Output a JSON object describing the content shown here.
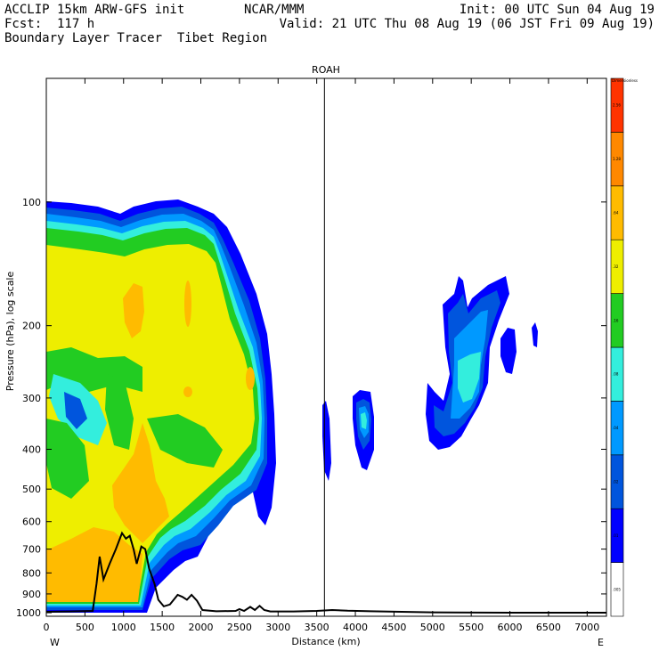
{
  "header": {
    "left_line1": "ACCLIP 15km ARW-GFS init",
    "left_line2": "Fcst:  117 h",
    "left_line3": "Boundary Layer Tracer  Tibet Region",
    "center": "NCAR/MMM",
    "right_line1": "Init: 00 UTC Sun 04 Aug 19",
    "right_line2": "Valid: 21 UTC Thu 08 Aug 19 (06 JST Fri 09 Aug 19)"
  },
  "chart_data": {
    "type": "heatmap",
    "title": "ROAH",
    "xlabel": "Distance (km)",
    "ylabel": "Pressure (hPa), log scale",
    "x_ticks": [
      0,
      500,
      1000,
      1500,
      2000,
      2500,
      3000,
      3500,
      4000,
      4500,
      5000,
      5500,
      6000,
      6500,
      7000
    ],
    "x_range": [
      0,
      7250
    ],
    "y_ticks": [
      100,
      200,
      300,
      400,
      500,
      600,
      700,
      800,
      900,
      1000
    ],
    "y_range": [
      1020,
      50
    ],
    "y_scale": "log",
    "x_left_label": "W",
    "x_right_label": "E",
    "marker_line_km": 3600,
    "colorbar": {
      "unit_label": "Dimensionless",
      "levels": [
        ".005",
        ".01",
        ".02",
        ".04",
        ".08",
        ".16",
        ".32",
        ".64",
        "1.28",
        "2.56"
      ],
      "colors": [
        "#ffffff",
        "#0000ff",
        "#0055dd",
        "#0099ff",
        "#33eedd",
        "#22cc22",
        "#eeee00",
        "#ffbb00",
        "#ff8800",
        "#ff3300"
      ]
    },
    "terrain_km_hpa": [
      [
        0,
        995
      ],
      [
        300,
        993
      ],
      [
        600,
        990
      ],
      [
        650,
        850
      ],
      [
        690,
        730
      ],
      [
        740,
        830
      ],
      [
        820,
        760
      ],
      [
        900,
        700
      ],
      [
        980,
        640
      ],
      [
        1030,
        660
      ],
      [
        1080,
        650
      ],
      [
        1130,
        700
      ],
      [
        1170,
        760
      ],
      [
        1230,
        690
      ],
      [
        1280,
        700
      ],
      [
        1330,
        780
      ],
      [
        1400,
        850
      ],
      [
        1450,
        930
      ],
      [
        1520,
        965
      ],
      [
        1600,
        955
      ],
      [
        1700,
        905
      ],
      [
        1760,
        915
      ],
      [
        1820,
        930
      ],
      [
        1880,
        905
      ],
      [
        1950,
        935
      ],
      [
        2020,
        985
      ],
      [
        2200,
        992
      ],
      [
        2450,
        990
      ],
      [
        2500,
        980
      ],
      [
        2560,
        990
      ],
      [
        2640,
        968
      ],
      [
        2700,
        985
      ],
      [
        2760,
        962
      ],
      [
        2820,
        985
      ],
      [
        2900,
        993
      ],
      [
        3200,
        993
      ],
      [
        3500,
        990
      ],
      [
        3700,
        985
      ],
      [
        3900,
        989
      ],
      [
        4200,
        992
      ],
      [
        4600,
        995
      ],
      [
        5000,
        998
      ],
      [
        6000,
        1000
      ],
      [
        7250,
        1000
      ]
    ],
    "tracer_fields": [
      {
        "region": "western plume",
        "x_km": [
          0,
          3050
        ],
        "p_hpa": [
          90,
          1000
        ],
        "max_level": "1.28"
      },
      {
        "region": "column near ROAH",
        "x_km": [
          3600,
          3700
        ],
        "p_hpa": [
          270,
          500
        ],
        "max_level": ".01"
      },
      {
        "region": "cell near 4000-4200 km",
        "x_km": [
          3930,
          4230
        ],
        "p_hpa": [
          280,
          430
        ],
        "max_level": ".08"
      },
      {
        "region": "upper cell 4900-6000 km",
        "x_km": [
          4900,
          6000
        ],
        "p_hpa": [
          145,
          400
        ],
        "max_level": ".08"
      },
      {
        "region": "small cell near 6300 km",
        "x_km": [
          6250,
          6350
        ],
        "p_hpa": [
          195,
          230
        ],
        "max_level": ".01"
      }
    ]
  }
}
